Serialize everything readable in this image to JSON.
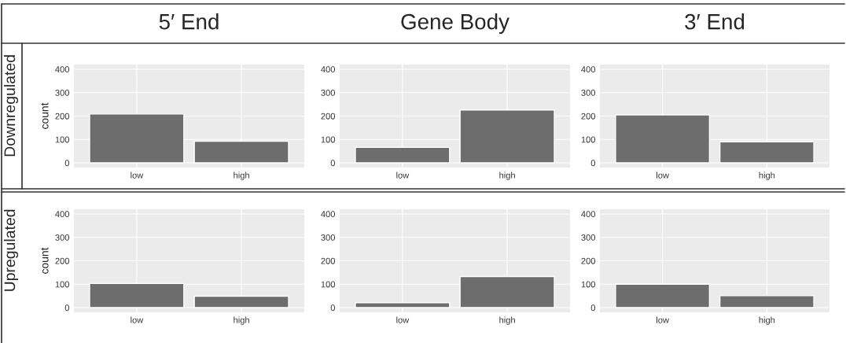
{
  "chart_data": [
    {
      "type": "bar",
      "title": "5′ End",
      "ylabel": "count",
      "annotations": [
        "Downregulated"
      ],
      "categories": [
        "low",
        "high"
      ],
      "values": [
        209,
        92
      ],
      "color": "#6d6d6d",
      "ylim": [
        -20,
        420
      ],
      "yticks": [
        0,
        100,
        200,
        300,
        400
      ],
      "grid": true
    },
    {
      "type": "bar",
      "title": "Gene Body",
      "categories": [
        "low",
        "high"
      ],
      "values": [
        66,
        226
      ],
      "color": "#6d6d6d",
      "ylim": [
        -20,
        420
      ],
      "yticks": [
        0,
        100,
        200,
        300,
        400
      ],
      "grid": true
    },
    {
      "type": "bar",
      "title": "3′ End",
      "categories": [
        "low",
        "high"
      ],
      "values": [
        205,
        90
      ],
      "color": "#6d6d6d",
      "ylim": [
        -20,
        420
      ],
      "yticks": [
        0,
        100,
        200,
        300,
        400
      ],
      "grid": true
    },
    {
      "type": "bar",
      "ylabel": "count",
      "annotations": [
        "Upregulated"
      ],
      "categories": [
        "low",
        "high"
      ],
      "values": [
        103,
        49
      ],
      "color": "#6d6d6d",
      "ylim": [
        -20,
        420
      ],
      "yticks": [
        0,
        100,
        200,
        300,
        400
      ],
      "grid": true
    },
    {
      "type": "bar",
      "categories": [
        "low",
        "high"
      ],
      "values": [
        21,
        133
      ],
      "color": "#6d6d6d",
      "ylim": [
        -20,
        420
      ],
      "yticks": [
        0,
        100,
        200,
        300,
        400
      ],
      "grid": true
    },
    {
      "type": "bar",
      "categories": [
        "low",
        "high"
      ],
      "values": [
        100,
        51
      ],
      "color": "#6d6d6d",
      "ylim": [
        -20,
        420
      ],
      "yticks": [
        0,
        100,
        200,
        300,
        400
      ],
      "grid": true
    }
  ]
}
